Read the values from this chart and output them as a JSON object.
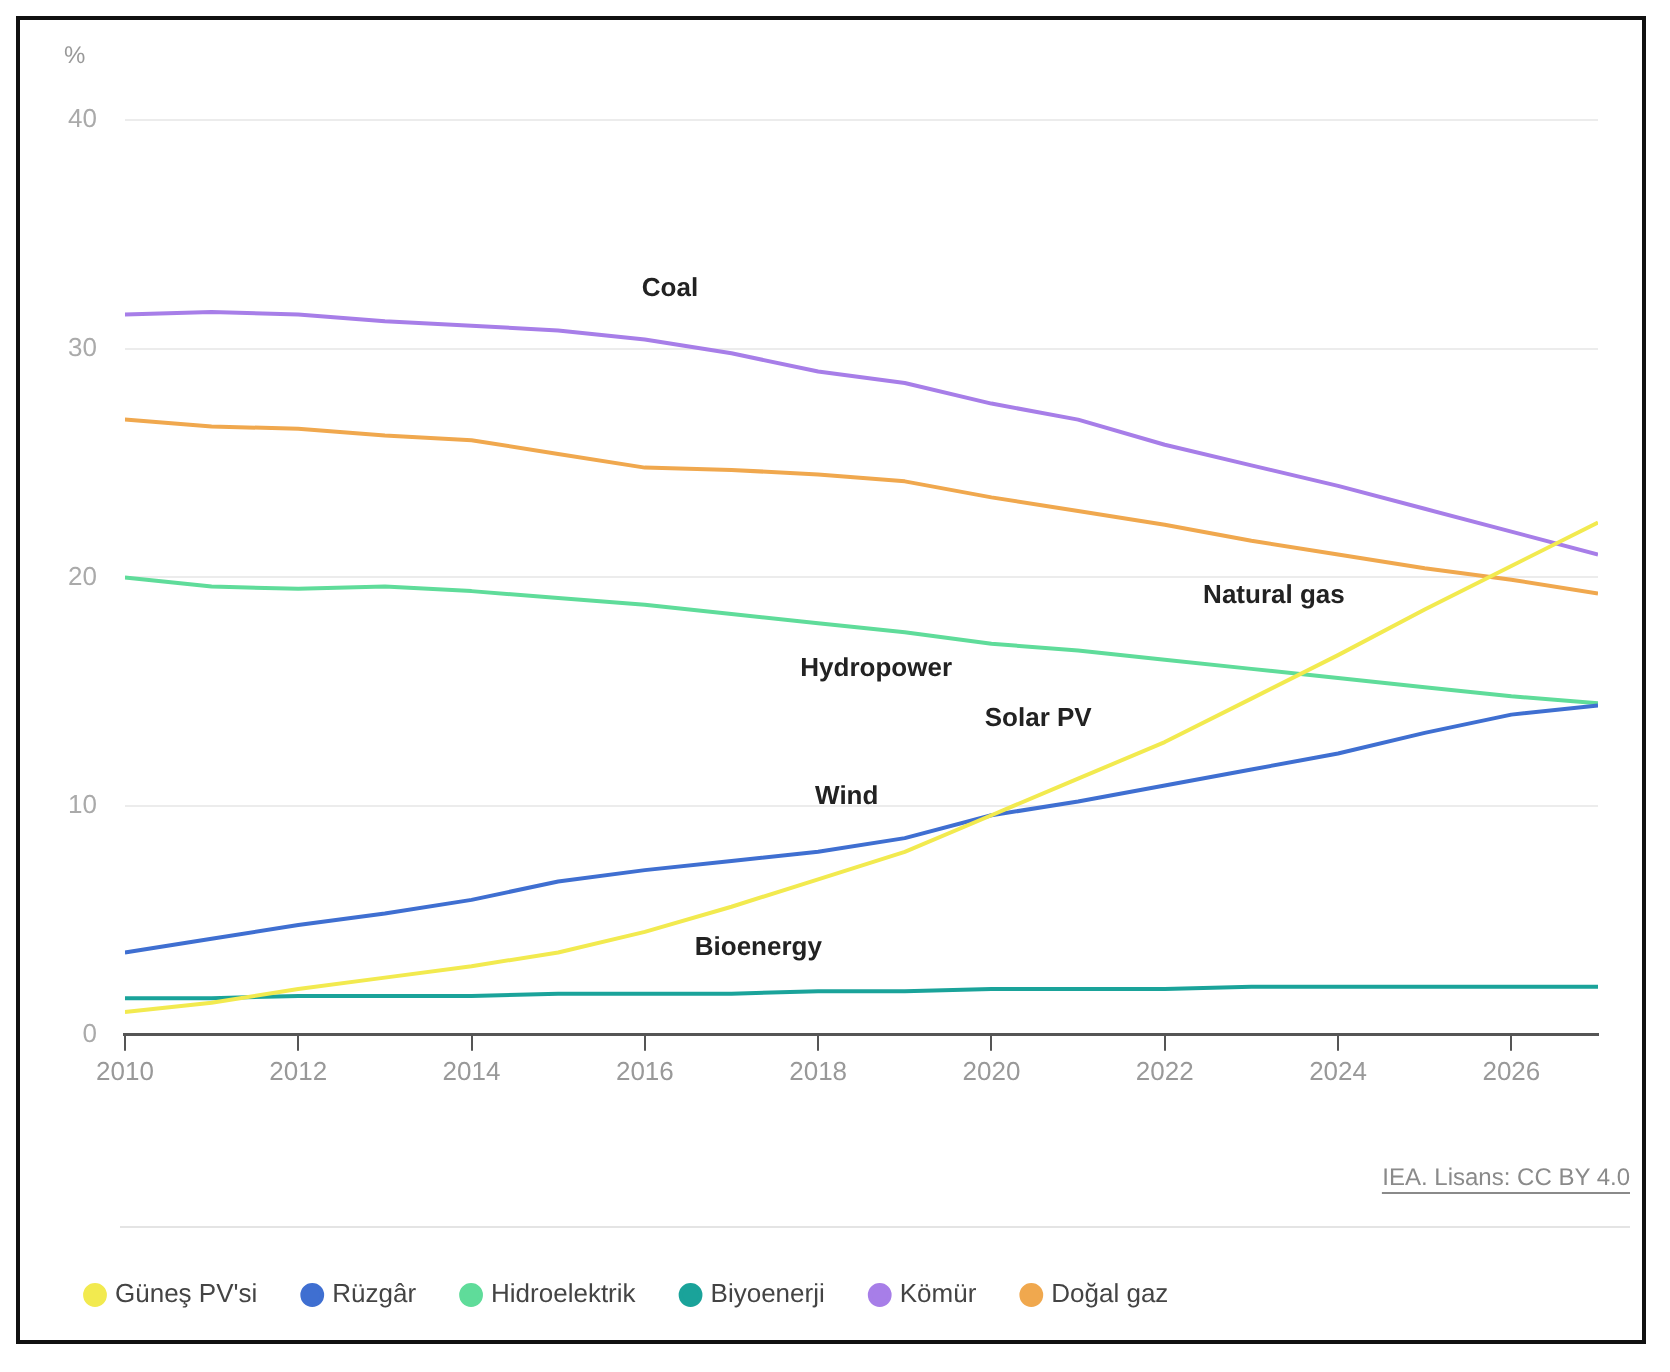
{
  "chart_data": {
    "type": "line",
    "ylabel": "%",
    "x": [
      2010,
      2011,
      2012,
      2013,
      2014,
      2015,
      2016,
      2017,
      2018,
      2019,
      2020,
      2021,
      2022,
      2023,
      2024,
      2025,
      2026,
      2027
    ],
    "series": [
      {
        "name": "Güneş PV'si",
        "color": "#f2ea4f",
        "values": [
          1.0,
          1.4,
          2.0,
          2.5,
          3.0,
          3.6,
          4.5,
          5.6,
          6.8,
          8.0,
          9.6,
          11.2,
          12.8,
          14.7,
          16.6,
          18.6,
          20.5,
          22.4
        ]
      },
      {
        "name": "Rüzgâr",
        "color": "#3f6fd1",
        "values": [
          3.6,
          4.2,
          4.8,
          5.3,
          5.9,
          6.7,
          7.2,
          7.6,
          8.0,
          8.6,
          9.6,
          10.2,
          10.9,
          11.6,
          12.3,
          13.2,
          14.0,
          14.4
        ]
      },
      {
        "name": "Hidroelektrik",
        "color": "#5fdc9a",
        "values": [
          20.0,
          19.6,
          19.5,
          19.6,
          19.4,
          19.1,
          18.8,
          18.4,
          18.0,
          17.6,
          17.1,
          16.8,
          16.4,
          16.0,
          15.6,
          15.2,
          14.8,
          14.5
        ]
      },
      {
        "name": "Biyoenerji",
        "color": "#1aa39a",
        "values": [
          1.6,
          1.6,
          1.7,
          1.7,
          1.7,
          1.8,
          1.8,
          1.8,
          1.9,
          1.9,
          2.0,
          2.0,
          2.0,
          2.1,
          2.1,
          2.1,
          2.1,
          2.1
        ]
      },
      {
        "name": "Kömür",
        "color": "#a77ee8",
        "values": [
          31.5,
          31.6,
          31.5,
          31.2,
          31.0,
          30.8,
          30.4,
          29.8,
          29.0,
          28.5,
          27.6,
          26.9,
          25.8,
          24.9,
          24.0,
          23.0,
          22.0,
          21.0
        ]
      },
      {
        "name": "Doğal gaz",
        "color": "#f0a84e",
        "values": [
          26.9,
          26.6,
          26.5,
          26.2,
          26.0,
          25.4,
          24.8,
          24.7,
          24.5,
          24.2,
          23.5,
          22.9,
          22.3,
          21.6,
          21.0,
          20.4,
          19.9,
          19.3
        ]
      }
    ],
    "xlim": [
      2010,
      2027
    ],
    "xticks": [
      2010,
      2012,
      2014,
      2016,
      2018,
      2020,
      2022,
      2024,
      2026
    ],
    "ylim": [
      0,
      40
    ],
    "yticks": [
      0,
      10,
      20,
      30,
      40
    ],
    "grid": "y",
    "legend": "bottom",
    "marker": "none",
    "line_style": "solid",
    "annotations": [
      "Coal",
      "Natural gas",
      "Hydropower",
      "Solar PV",
      "Wind",
      "Bioenergy",
      "IEA. Lisans: CC BY 4.0"
    ]
  }
}
